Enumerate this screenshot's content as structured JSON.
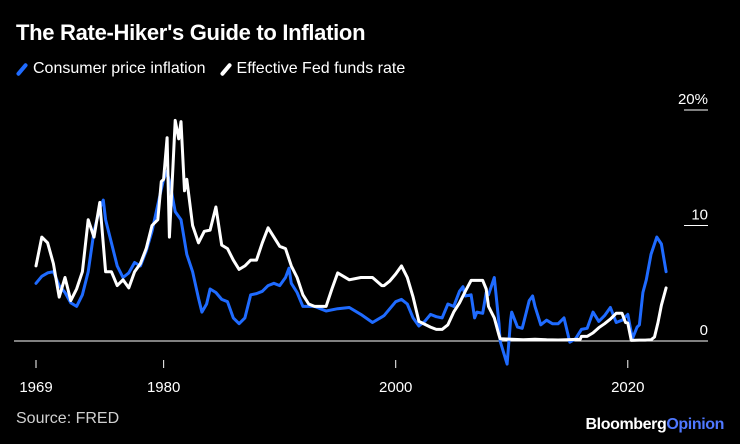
{
  "header": {
    "title": "The Rate-Hiker's Guide to Inflation"
  },
  "legend": [
    {
      "label": "Consumer price inflation",
      "color": "#1f6bff"
    },
    {
      "label": "Effective Fed funds rate",
      "color": "#ffffff"
    }
  ],
  "footer": {
    "source": "Source: FRED",
    "brand_primary": "Bloomberg",
    "brand_secondary": "Opinion"
  },
  "chart_data": {
    "type": "line",
    "title": "The Rate-Hiker's Guide to Inflation",
    "xlabel": "",
    "ylabel": "",
    "xlim": [
      1969,
      2024.5
    ],
    "ylim": [
      -2,
      20
    ],
    "x_ticks": [
      {
        "value": 1969,
        "label": "1969"
      },
      {
        "value": 1980,
        "label": "1980"
      },
      {
        "value": 2000,
        "label": "2000"
      },
      {
        "value": 2020,
        "label": "2020"
      }
    ],
    "y_ticks": [
      {
        "value": 20,
        "label": "20%"
      },
      {
        "value": 10,
        "label": "10"
      },
      {
        "value": 0,
        "label": "0"
      }
    ],
    "grid": false,
    "zero_line": true,
    "series": [
      {
        "name": "Consumer price inflation",
        "color": "#1f6bff",
        "points": [
          [
            1969,
            5.0
          ],
          [
            1969.5,
            5.6
          ],
          [
            1970,
            5.9
          ],
          [
            1970.5,
            6.0
          ],
          [
            1971,
            4.8
          ],
          [
            1971.5,
            4.2
          ],
          [
            1972,
            3.3
          ],
          [
            1972.5,
            3.0
          ],
          [
            1973,
            4.0
          ],
          [
            1973.5,
            6.0
          ],
          [
            1974,
            9.5
          ],
          [
            1974.5,
            11.5
          ],
          [
            1974.8,
            12.2
          ],
          [
            1975,
            10.5
          ],
          [
            1975.5,
            8.5
          ],
          [
            1976,
            6.5
          ],
          [
            1976.5,
            5.5
          ],
          [
            1977,
            5.9
          ],
          [
            1977.5,
            6.8
          ],
          [
            1978,
            6.5
          ],
          [
            1978.5,
            7.8
          ],
          [
            1979,
            9.5
          ],
          [
            1979.5,
            11.8
          ],
          [
            1980,
            14.0
          ],
          [
            1980.3,
            14.7
          ],
          [
            1980.7,
            12.8
          ],
          [
            1981,
            11.2
          ],
          [
            1981.5,
            10.5
          ],
          [
            1982,
            7.5
          ],
          [
            1982.5,
            6.0
          ],
          [
            1983,
            3.7
          ],
          [
            1983.3,
            2.5
          ],
          [
            1983.7,
            3.2
          ],
          [
            1984,
            4.5
          ],
          [
            1984.5,
            4.2
          ],
          [
            1985,
            3.6
          ],
          [
            1985.5,
            3.4
          ],
          [
            1986,
            2.0
          ],
          [
            1986.5,
            1.5
          ],
          [
            1987,
            2.0
          ],
          [
            1987.5,
            4.0
          ],
          [
            1988,
            4.1
          ],
          [
            1988.5,
            4.3
          ],
          [
            1989,
            4.8
          ],
          [
            1989.5,
            5.0
          ],
          [
            1990,
            4.8
          ],
          [
            1990.5,
            5.5
          ],
          [
            1990.8,
            6.3
          ],
          [
            1991,
            5.0
          ],
          [
            1991.5,
            4.2
          ],
          [
            1992,
            3.0
          ],
          [
            1992.5,
            3.0
          ],
          [
            1993,
            3.0
          ],
          [
            1993.5,
            2.8
          ],
          [
            1994,
            2.6
          ],
          [
            1995,
            2.8
          ],
          [
            1996,
            2.9
          ],
          [
            1997,
            2.3
          ],
          [
            1998,
            1.6
          ],
          [
            1999,
            2.2
          ],
          [
            2000,
            3.4
          ],
          [
            2000.5,
            3.6
          ],
          [
            2001,
            3.2
          ],
          [
            2001.5,
            2.0
          ],
          [
            2002,
            1.3
          ],
          [
            2002.5,
            1.7
          ],
          [
            2003,
            2.3
          ],
          [
            2003.5,
            2.1
          ],
          [
            2004,
            2.0
          ],
          [
            2004.5,
            3.2
          ],
          [
            2005,
            3.0
          ],
          [
            2005.5,
            4.3
          ],
          [
            2005.8,
            4.7
          ],
          [
            2006,
            3.9
          ],
          [
            2006.5,
            4.0
          ],
          [
            2006.8,
            2.0
          ],
          [
            2007,
            2.5
          ],
          [
            2007.5,
            2.4
          ],
          [
            2007.8,
            4.2
          ],
          [
            2008,
            4.0
          ],
          [
            2008.5,
            5.5
          ],
          [
            2008.9,
            1.5
          ],
          [
            2009,
            0.0
          ],
          [
            2009.3,
            -1.0
          ],
          [
            2009.6,
            -2.0
          ],
          [
            2009.9,
            1.8
          ],
          [
            2010,
            2.5
          ],
          [
            2010.5,
            1.2
          ],
          [
            2010.9,
            1.1
          ],
          [
            2011,
            1.5
          ],
          [
            2011.5,
            3.5
          ],
          [
            2011.8,
            3.9
          ],
          [
            2012,
            3.0
          ],
          [
            2012.5,
            1.4
          ],
          [
            2013,
            1.8
          ],
          [
            2013.5,
            1.5
          ],
          [
            2014,
            1.5
          ],
          [
            2014.5,
            2.0
          ],
          [
            2015,
            -0.1
          ],
          [
            2015.5,
            0.2
          ],
          [
            2016,
            1.0
          ],
          [
            2016.5,
            1.1
          ],
          [
            2017,
            2.5
          ],
          [
            2017.5,
            1.7
          ],
          [
            2018,
            2.2
          ],
          [
            2018.5,
            2.9
          ],
          [
            2019,
            1.6
          ],
          [
            2019.5,
            1.8
          ],
          [
            2020,
            2.3
          ],
          [
            2020.4,
            0.2
          ],
          [
            2020.8,
            1.2
          ],
          [
            2021,
            1.4
          ],
          [
            2021.3,
            4.2
          ],
          [
            2021.6,
            5.3
          ],
          [
            2022,
            7.5
          ],
          [
            2022.5,
            9.0
          ],
          [
            2022.9,
            8.4
          ],
          [
            2023.3,
            6.0
          ]
        ]
      },
      {
        "name": "Effective Fed funds rate",
        "color": "#ffffff",
        "points": [
          [
            1969,
            6.5
          ],
          [
            1969.5,
            9.0
          ],
          [
            1970,
            8.5
          ],
          [
            1970.5,
            6.7
          ],
          [
            1971,
            3.8
          ],
          [
            1971.5,
            5.5
          ],
          [
            1972,
            3.5
          ],
          [
            1972.5,
            4.5
          ],
          [
            1973,
            6.0
          ],
          [
            1973.5,
            10.5
          ],
          [
            1974,
            9.0
          ],
          [
            1974.5,
            12.0
          ],
          [
            1975,
            6.0
          ],
          [
            1975.5,
            6.0
          ],
          [
            1976,
            4.8
          ],
          [
            1976.5,
            5.3
          ],
          [
            1977,
            4.6
          ],
          [
            1977.5,
            6.0
          ],
          [
            1978,
            6.7
          ],
          [
            1978.5,
            8.0
          ],
          [
            1979,
            10.0
          ],
          [
            1979.5,
            10.5
          ],
          [
            1979.8,
            13.8
          ],
          [
            1980,
            14.0
          ],
          [
            1980.3,
            17.6
          ],
          [
            1980.5,
            9.0
          ],
          [
            1980.8,
            15.0
          ],
          [
            1981,
            19.1
          ],
          [
            1981.3,
            17.5
          ],
          [
            1981.5,
            19.0
          ],
          [
            1981.8,
            13.0
          ],
          [
            1982,
            14.0
          ],
          [
            1982.5,
            10.0
          ],
          [
            1983,
            8.5
          ],
          [
            1983.5,
            9.5
          ],
          [
            1984,
            9.6
          ],
          [
            1984.5,
            11.6
          ],
          [
            1985,
            8.3
          ],
          [
            1985.5,
            8.0
          ],
          [
            1986,
            7.0
          ],
          [
            1986.5,
            6.2
          ],
          [
            1987,
            6.5
          ],
          [
            1987.5,
            7.0
          ],
          [
            1988,
            7.0
          ],
          [
            1988.5,
            8.5
          ],
          [
            1989,
            9.8
          ],
          [
            1989.5,
            9.0
          ],
          [
            1990,
            8.2
          ],
          [
            1990.5,
            8.0
          ],
          [
            1991,
            6.5
          ],
          [
            1991.5,
            5.5
          ],
          [
            1992,
            4.0
          ],
          [
            1992.5,
            3.2
          ],
          [
            1993,
            3.0
          ],
          [
            1994,
            3.0
          ],
          [
            1994.5,
            4.5
          ],
          [
            1995,
            5.9
          ],
          [
            1996,
            5.3
          ],
          [
            1997,
            5.5
          ],
          [
            1998,
            5.5
          ],
          [
            1998.8,
            4.8
          ],
          [
            1999,
            4.8
          ],
          [
            1999.5,
            5.2
          ],
          [
            2000,
            5.8
          ],
          [
            2000.5,
            6.5
          ],
          [
            2001,
            5.5
          ],
          [
            2001.5,
            3.8
          ],
          [
            2002,
            1.7
          ],
          [
            2003,
            1.2
          ],
          [
            2003.5,
            1.0
          ],
          [
            2004,
            1.0
          ],
          [
            2004.5,
            1.4
          ],
          [
            2005,
            2.5
          ],
          [
            2005.5,
            3.3
          ],
          [
            2006,
            4.3
          ],
          [
            2006.5,
            5.25
          ],
          [
            2007,
            5.25
          ],
          [
            2007.5,
            5.25
          ],
          [
            2007.8,
            4.5
          ],
          [
            2008,
            3.0
          ],
          [
            2008.5,
            2.0
          ],
          [
            2008.9,
            0.5
          ],
          [
            2009,
            0.2
          ],
          [
            2010,
            0.15
          ],
          [
            2011,
            0.1
          ],
          [
            2012,
            0.15
          ],
          [
            2013,
            0.1
          ],
          [
            2014,
            0.09
          ],
          [
            2015,
            0.12
          ],
          [
            2015.9,
            0.15
          ],
          [
            2016,
            0.4
          ],
          [
            2016.5,
            0.4
          ],
          [
            2017,
            0.7
          ],
          [
            2017.5,
            1.15
          ],
          [
            2018,
            1.5
          ],
          [
            2018.5,
            1.9
          ],
          [
            2019,
            2.4
          ],
          [
            2019.5,
            2.4
          ],
          [
            2019.8,
            1.6
          ],
          [
            2020,
            1.55
          ],
          [
            2020.3,
            0.05
          ],
          [
            2021,
            0.08
          ],
          [
            2021.5,
            0.08
          ],
          [
            2022,
            0.1
          ],
          [
            2022.3,
            0.35
          ],
          [
            2022.6,
            1.6
          ],
          [
            2022.9,
            3.1
          ],
          [
            2023.3,
            4.6
          ]
        ]
      }
    ]
  }
}
